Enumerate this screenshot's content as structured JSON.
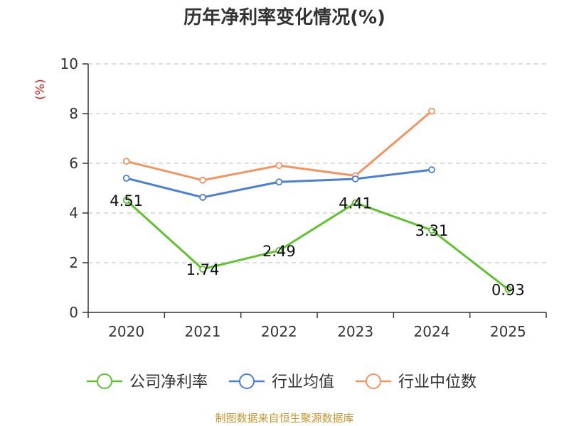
{
  "title": "历年净利率变化情况(%)",
  "source": "制图数据来自恒生聚源数据库",
  "colors": {
    "company": "#5ec22d",
    "industry_avg": "#4a7fd6",
    "industry_median": "#f59360",
    "unit_label": "#d42020",
    "axis": "#333333",
    "grid": "#bbbbbb"
  },
  "chart_data": {
    "type": "line",
    "title": "历年净利率变化情况(%)",
    "ylabel": "(%)",
    "xlabel": "",
    "categories": [
      "2020",
      "2021",
      "2022",
      "2023",
      "2024",
      "2025"
    ],
    "ylim": [
      0,
      10
    ],
    "yticks": [
      0,
      2,
      4,
      6,
      8,
      10
    ],
    "grid": true,
    "legend_position": "bottom",
    "series": [
      {
        "name": "公司净利率",
        "key": "company",
        "values": [
          4.51,
          1.74,
          2.49,
          4.41,
          3.31,
          0.93
        ],
        "labels": [
          "4.51",
          "1.74",
          "2.49",
          "4.41",
          "3.31",
          "0.93"
        ]
      },
      {
        "name": "行业均值",
        "key": "industry_avg",
        "values": [
          5.4,
          4.63,
          5.25,
          5.37,
          5.74,
          null
        ]
      },
      {
        "name": "行业中位数",
        "key": "industry_median",
        "values": [
          6.08,
          5.32,
          5.91,
          5.5,
          8.1,
          null
        ]
      }
    ]
  }
}
